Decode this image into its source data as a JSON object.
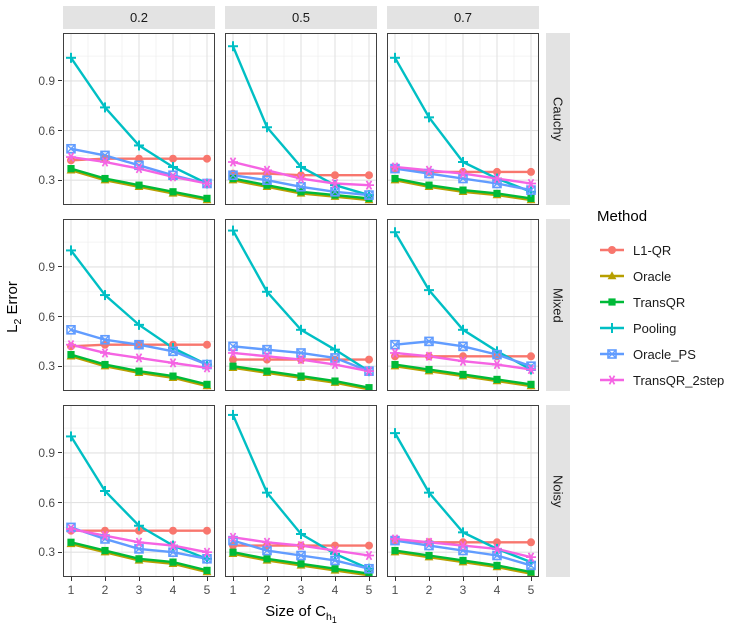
{
  "figure": {
    "y_axis_label_prefix": "L",
    "y_axis_label_subscript": "2",
    "y_axis_label_suffix": " Error",
    "x_axis_label_prefix": "Size of C",
    "x_axis_label_subscript": "h",
    "x_axis_label_subsubscript": "1"
  },
  "facets": {
    "columns": [
      "0.2",
      "0.5",
      "0.7"
    ],
    "rows": [
      "Cauchy",
      "Mixed",
      "Noisy"
    ]
  },
  "axes": {
    "x_ticks": [
      "1",
      "2",
      "3",
      "4",
      "5"
    ],
    "y_ticks": [
      "0.3",
      "0.6",
      "0.9"
    ],
    "x_range": [
      0.8,
      5.2
    ],
    "y_range": [
      0.15,
      1.19
    ],
    "grid": true
  },
  "legend": {
    "title": "Method",
    "position": "right",
    "entries": [
      {
        "name": "L1-QR",
        "color": "#F8766D",
        "marker": "circle"
      },
      {
        "name": "Oracle",
        "color": "#B79F00",
        "marker": "triangle"
      },
      {
        "name": "TransQR",
        "color": "#00BA38",
        "marker": "square"
      },
      {
        "name": "Pooling",
        "color": "#00BFC4",
        "marker": "plus"
      },
      {
        "name": "Oracle_PS",
        "color": "#619CFF",
        "marker": "square-cross"
      },
      {
        "name": "TransQR_2step",
        "color": "#F564E3",
        "marker": "asterisk"
      }
    ]
  },
  "chart_data": [
    {
      "type": "line",
      "facet_row": "Cauchy",
      "facet_col": "0.2",
      "x": [
        1,
        2,
        3,
        4,
        5
      ],
      "series": [
        {
          "name": "L1-QR",
          "values": [
            0.42,
            0.43,
            0.43,
            0.43,
            0.43
          ]
        },
        {
          "name": "Oracle",
          "values": [
            0.36,
            0.3,
            0.26,
            0.22,
            0.18
          ]
        },
        {
          "name": "TransQR",
          "values": [
            0.37,
            0.31,
            0.27,
            0.23,
            0.19
          ]
        },
        {
          "name": "Pooling",
          "values": [
            1.04,
            0.74,
            0.51,
            0.38,
            0.28
          ]
        },
        {
          "name": "Oracle_PS",
          "values": [
            0.49,
            0.45,
            0.39,
            0.33,
            0.28
          ]
        },
        {
          "name": "TransQR_2step",
          "values": [
            0.44,
            0.41,
            0.37,
            0.32,
            0.28
          ]
        }
      ]
    },
    {
      "type": "line",
      "facet_row": "Cauchy",
      "facet_col": "0.5",
      "x": [
        1,
        2,
        3,
        4,
        5
      ],
      "series": [
        {
          "name": "L1-QR",
          "values": [
            0.34,
            0.34,
            0.33,
            0.33,
            0.33
          ]
        },
        {
          "name": "Oracle",
          "values": [
            0.3,
            0.26,
            0.22,
            0.2,
            0.18
          ]
        },
        {
          "name": "TransQR",
          "values": [
            0.31,
            0.27,
            0.23,
            0.21,
            0.19
          ]
        },
        {
          "name": "Pooling",
          "values": [
            1.11,
            0.62,
            0.38,
            0.27,
            0.21
          ]
        },
        {
          "name": "Oracle_PS",
          "values": [
            0.33,
            0.3,
            0.26,
            0.23,
            0.21
          ]
        },
        {
          "name": "TransQR_2step",
          "values": [
            0.41,
            0.36,
            0.31,
            0.28,
            0.27
          ]
        }
      ]
    },
    {
      "type": "line",
      "facet_row": "Cauchy",
      "facet_col": "0.7",
      "x": [
        1,
        2,
        3,
        4,
        5
      ],
      "series": [
        {
          "name": "L1-QR",
          "values": [
            0.37,
            0.35,
            0.35,
            0.35,
            0.35
          ]
        },
        {
          "name": "Oracle",
          "values": [
            0.3,
            0.26,
            0.23,
            0.21,
            0.18
          ]
        },
        {
          "name": "TransQR",
          "values": [
            0.31,
            0.27,
            0.24,
            0.22,
            0.19
          ]
        },
        {
          "name": "Pooling",
          "values": [
            1.04,
            0.68,
            0.41,
            0.31,
            0.23
          ]
        },
        {
          "name": "Oracle_PS",
          "values": [
            0.37,
            0.34,
            0.31,
            0.28,
            0.24
          ]
        },
        {
          "name": "TransQR_2step",
          "values": [
            0.38,
            0.36,
            0.34,
            0.31,
            0.28
          ]
        }
      ]
    },
    {
      "type": "line",
      "facet_row": "Mixed",
      "facet_col": "0.2",
      "x": [
        1,
        2,
        3,
        4,
        5
      ],
      "series": [
        {
          "name": "L1-QR",
          "values": [
            0.42,
            0.43,
            0.43,
            0.43,
            0.43
          ]
        },
        {
          "name": "Oracle",
          "values": [
            0.36,
            0.3,
            0.26,
            0.23,
            0.18
          ]
        },
        {
          "name": "TransQR",
          "values": [
            0.37,
            0.31,
            0.27,
            0.24,
            0.19
          ]
        },
        {
          "name": "Pooling",
          "values": [
            1.0,
            0.73,
            0.55,
            0.41,
            0.31
          ]
        },
        {
          "name": "Oracle_PS",
          "values": [
            0.52,
            0.46,
            0.43,
            0.39,
            0.31
          ]
        },
        {
          "name": "TransQR_2step",
          "values": [
            0.43,
            0.38,
            0.35,
            0.32,
            0.29
          ]
        }
      ]
    },
    {
      "type": "line",
      "facet_row": "Mixed",
      "facet_col": "0.5",
      "x": [
        1,
        2,
        3,
        4,
        5
      ],
      "series": [
        {
          "name": "L1-QR",
          "values": [
            0.34,
            0.34,
            0.34,
            0.34,
            0.34
          ]
        },
        {
          "name": "Oracle",
          "values": [
            0.29,
            0.26,
            0.23,
            0.2,
            0.16
          ]
        },
        {
          "name": "TransQR",
          "values": [
            0.3,
            0.27,
            0.24,
            0.21,
            0.17
          ]
        },
        {
          "name": "Pooling",
          "values": [
            1.12,
            0.75,
            0.52,
            0.4,
            0.27
          ]
        },
        {
          "name": "Oracle_PS",
          "values": [
            0.42,
            0.4,
            0.38,
            0.35,
            0.27
          ]
        },
        {
          "name": "TransQR_2step",
          "values": [
            0.38,
            0.36,
            0.34,
            0.31,
            0.27
          ]
        }
      ]
    },
    {
      "type": "line",
      "facet_row": "Mixed",
      "facet_col": "0.7",
      "x": [
        1,
        2,
        3,
        4,
        5
      ],
      "series": [
        {
          "name": "L1-QR",
          "values": [
            0.36,
            0.36,
            0.36,
            0.36,
            0.36
          ]
        },
        {
          "name": "Oracle",
          "values": [
            0.3,
            0.27,
            0.24,
            0.21,
            0.18
          ]
        },
        {
          "name": "TransQR",
          "values": [
            0.31,
            0.28,
            0.25,
            0.22,
            0.19
          ]
        },
        {
          "name": "Pooling",
          "values": [
            1.11,
            0.76,
            0.52,
            0.39,
            0.28
          ]
        },
        {
          "name": "Oracle_PS",
          "values": [
            0.43,
            0.45,
            0.42,
            0.37,
            0.3
          ]
        },
        {
          "name": "TransQR_2step",
          "values": [
            0.38,
            0.36,
            0.33,
            0.31,
            0.28
          ]
        }
      ]
    },
    {
      "type": "line",
      "facet_row": "Noisy",
      "facet_col": "0.2",
      "x": [
        1,
        2,
        3,
        4,
        5
      ],
      "series": [
        {
          "name": "L1-QR",
          "values": [
            0.43,
            0.43,
            0.43,
            0.43,
            0.43
          ]
        },
        {
          "name": "Oracle",
          "values": [
            0.35,
            0.3,
            0.25,
            0.23,
            0.18
          ]
        },
        {
          "name": "TransQR",
          "values": [
            0.36,
            0.31,
            0.26,
            0.24,
            0.19
          ]
        },
        {
          "name": "Pooling",
          "values": [
            1.0,
            0.67,
            0.46,
            0.34,
            0.26
          ]
        },
        {
          "name": "Oracle_PS",
          "values": [
            0.45,
            0.38,
            0.32,
            0.3,
            0.26
          ]
        },
        {
          "name": "TransQR_2step",
          "values": [
            0.44,
            0.4,
            0.36,
            0.34,
            0.3
          ]
        }
      ]
    },
    {
      "type": "line",
      "facet_row": "Noisy",
      "facet_col": "0.5",
      "x": [
        1,
        2,
        3,
        4,
        5
      ],
      "series": [
        {
          "name": "L1-QR",
          "values": [
            0.34,
            0.34,
            0.34,
            0.34,
            0.34
          ]
        },
        {
          "name": "Oracle",
          "values": [
            0.29,
            0.25,
            0.22,
            0.19,
            0.16
          ]
        },
        {
          "name": "TransQR",
          "values": [
            0.3,
            0.26,
            0.23,
            0.2,
            0.17
          ]
        },
        {
          "name": "Pooling",
          "values": [
            1.13,
            0.66,
            0.41,
            0.29,
            0.2
          ]
        },
        {
          "name": "Oracle_PS",
          "values": [
            0.37,
            0.31,
            0.28,
            0.25,
            0.2
          ]
        },
        {
          "name": "TransQR_2step",
          "values": [
            0.39,
            0.36,
            0.34,
            0.31,
            0.28
          ]
        }
      ]
    },
    {
      "type": "line",
      "facet_row": "Noisy",
      "facet_col": "0.7",
      "x": [
        1,
        2,
        3,
        4,
        5
      ],
      "series": [
        {
          "name": "L1-QR",
          "values": [
            0.37,
            0.36,
            0.36,
            0.36,
            0.36
          ]
        },
        {
          "name": "Oracle",
          "values": [
            0.3,
            0.27,
            0.24,
            0.21,
            0.17
          ]
        },
        {
          "name": "TransQR",
          "values": [
            0.31,
            0.28,
            0.25,
            0.22,
            0.18
          ]
        },
        {
          "name": "Pooling",
          "values": [
            1.02,
            0.66,
            0.42,
            0.32,
            0.24
          ]
        },
        {
          "name": "Oracle_PS",
          "values": [
            0.37,
            0.34,
            0.31,
            0.28,
            0.22
          ]
        },
        {
          "name": "TransQR_2step",
          "values": [
            0.38,
            0.36,
            0.34,
            0.32,
            0.27
          ]
        }
      ]
    }
  ]
}
